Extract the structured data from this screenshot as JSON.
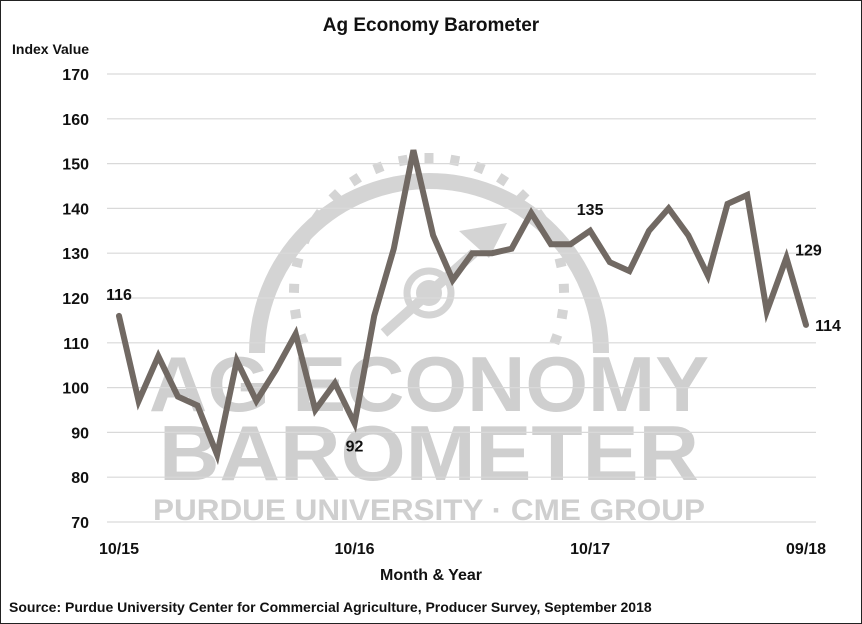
{
  "chart_data": {
    "type": "line",
    "title": "Ag Economy Barometer",
    "xlabel": "Month & Year",
    "ylabel": "Index Value",
    "ylim": [
      70,
      170
    ],
    "yticks": [
      70,
      80,
      90,
      100,
      110,
      120,
      130,
      140,
      150,
      160,
      170
    ],
    "xtick_labels": [
      {
        "index": 0,
        "label": "10/15"
      },
      {
        "index": 12,
        "label": "10/16"
      },
      {
        "index": 24,
        "label": "10/17"
      },
      {
        "index": 35,
        "label": "09/18"
      }
    ],
    "grid": true,
    "legend": "none",
    "series": [
      {
        "name": "Ag Economy Barometer",
        "color": "#716963",
        "values": [
          116,
          97,
          107,
          98,
          96,
          85,
          106,
          97,
          104,
          112,
          95,
          101,
          92,
          116,
          131,
          153,
          134,
          124,
          130,
          130,
          131,
          139,
          132,
          132,
          135,
          128,
          126,
          135,
          140,
          134,
          125,
          141,
          143,
          117,
          129,
          114
        ]
      }
    ],
    "annotations": [
      {
        "index": 0,
        "text": "116"
      },
      {
        "index": 12,
        "text": "92"
      },
      {
        "index": 24,
        "text": "135"
      },
      {
        "index": 34,
        "text": "129"
      },
      {
        "index": 35,
        "text": "114"
      }
    ],
    "source": "Source: Purdue University Center for Commercial Agriculture, Producer Survey, September 2018",
    "watermark": {
      "line1": "AG ECONOMY",
      "line2": "BAROMETER",
      "line3": "PURDUE UNIVERSITY  ·  CME GROUP"
    }
  }
}
